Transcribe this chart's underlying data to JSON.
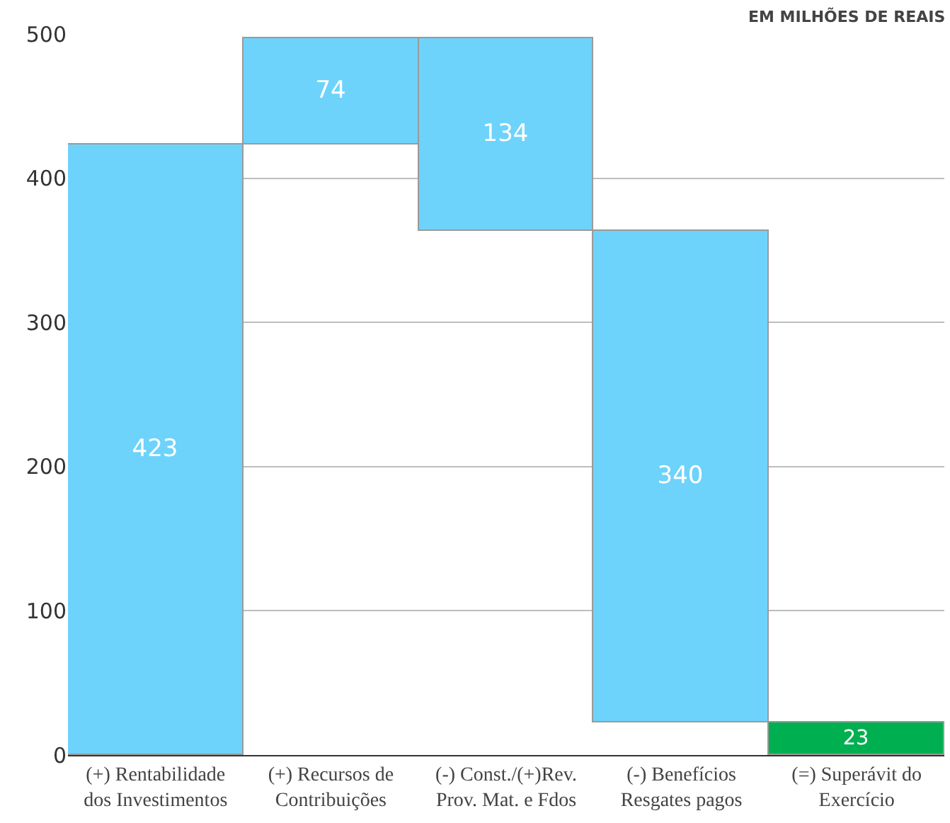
{
  "chart_data": {
    "type": "bar",
    "title": "EM MILHÕES DE REAIS",
    "categories": [
      "(+) Rentabilidade\ndos Investimentos",
      "(+) Recursos de\nContribuições",
      "(-) Const./(+)Rev.\nProv. Mat. e Fdos",
      "(-) Benefícios\nResgates pagos",
      "(=) Superávit do\nExercício"
    ],
    "values": [
      423,
      74,
      134,
      340,
      23
    ],
    "base": [
      0,
      423,
      363,
      23,
      0
    ],
    "colors": [
      "#6dd3fb",
      "#6dd3fb",
      "#6dd3fb",
      "#6dd3fb",
      "#00b050"
    ],
    "data_labels": true,
    "ylim": [
      0,
      500
    ],
    "yticks": [
      0,
      100,
      200,
      300,
      400,
      500
    ],
    "grid": "y",
    "legend": false
  }
}
